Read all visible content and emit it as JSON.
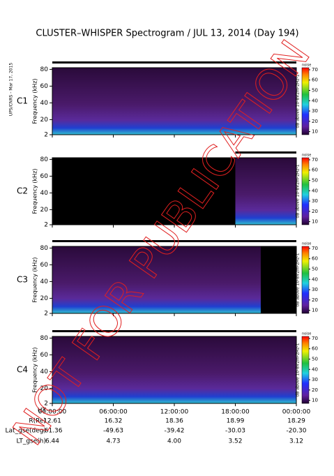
{
  "title": "CLUSTER–WHISPER Spectrogram / JUL 13, 2014 (Day 194)",
  "credit": "UPS/CNRS - Mar 17, 2015",
  "watermark": "NOT FOR PUBLICATION",
  "chart_data": [
    {
      "type": "spectrogram",
      "label": "C1",
      "label_color": "#000000",
      "ylabel": "Frequency (kHz)",
      "ylim": [
        2,
        82
      ],
      "yticks": [
        2,
        20,
        40,
        60,
        80
      ],
      "xlim": [
        0,
        24
      ],
      "xticks": [
        0,
        6,
        12,
        18,
        24
      ],
      "span": [
        0,
        24
      ],
      "availability": [
        0,
        24
      ],
      "colorbar": {
        "lim": [
          7,
          72
        ],
        "ticks": [
          10,
          20,
          30,
          40,
          50,
          60,
          70
        ],
        "label": "dB above 10-8V2m-2Hz-1",
        "note": "noise"
      }
    },
    {
      "type": "spectrogram",
      "label": "C2",
      "label_color": "#000000",
      "ylabel": "Frequency (kHz)",
      "ylim": [
        2,
        82
      ],
      "yticks": [
        2,
        20,
        40,
        60,
        80
      ],
      "xlim": [
        0,
        24
      ],
      "xticks": [
        0,
        6,
        12,
        18,
        24
      ],
      "span": [
        18,
        24
      ],
      "availability": [
        18,
        24
      ],
      "colorbar": {
        "lim": [
          7,
          72
        ],
        "ticks": [
          10,
          20,
          30,
          40,
          50,
          60,
          70
        ],
        "label": "dB above 10-8V2m-2Hz-1",
        "note": "noise"
      }
    },
    {
      "type": "spectrogram",
      "label": "C3",
      "label_color": "#22cc44",
      "ylabel": "Frequency (kHz)",
      "ylim": [
        2,
        82
      ],
      "yticks": [
        2,
        20,
        40,
        60,
        80
      ],
      "xlim": [
        0,
        24
      ],
      "xticks": [
        0,
        6,
        12,
        18,
        24
      ],
      "span": [
        0,
        20.5
      ],
      "availability": [
        0,
        24
      ],
      "colorbar": {
        "lim": [
          7,
          72
        ],
        "ticks": [
          10,
          20,
          30,
          40,
          50,
          60,
          70
        ],
        "label": "dB above 10-8V2m-2Hz-1",
        "note": "noise"
      }
    },
    {
      "type": "spectrogram",
      "label": "C4",
      "label_color": "#000000",
      "ylabel": "Frequency (kHz)",
      "ylim": [
        2,
        82
      ],
      "yticks": [
        2,
        20,
        40,
        60,
        80
      ],
      "xlim": [
        0,
        24
      ],
      "xticks": [
        {
          "value": 0,
          "label": "00:00:00"
        },
        {
          "value": 6,
          "label": "06:00:00"
        },
        {
          "value": 12,
          "label": "12:00:00"
        },
        {
          "value": 18,
          "label": "18:00:00"
        },
        {
          "value": 24,
          "label": "00:00:00"
        }
      ],
      "span": [
        0,
        24
      ],
      "availability": [
        0,
        24
      ],
      "colorbar": {
        "lim": [
          7,
          72
        ],
        "ticks": [
          10,
          20,
          30,
          40,
          50,
          60,
          70
        ],
        "label": "dB above 10-8V2m-2Hz-1",
        "note": "noise"
      }
    }
  ],
  "ephemeris": {
    "rows": [
      {
        "label": "UT",
        "values": []
      },
      {
        "label": "R(Re)",
        "values": [
          "12.61",
          "16.32",
          "18.36",
          "18.99",
          "18.29"
        ]
      },
      {
        "label": "Lat_gse(deg)",
        "values": [
          "-61.36",
          "-49.63",
          "-39.42",
          "-30.03",
          "-20.30"
        ]
      },
      {
        "label": "LT_gse(h)",
        "values": [
          "6.44",
          "4.73",
          "4.00",
          "3.52",
          "3.12"
        ]
      }
    ]
  }
}
